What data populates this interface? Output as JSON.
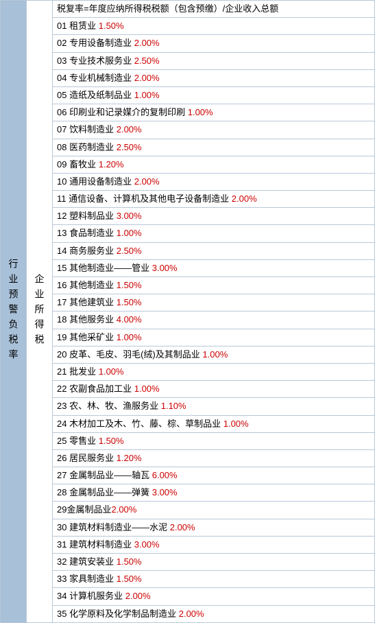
{
  "leftHeader": "行业预警负税率",
  "midHeader": "企业所得税",
  "formula": "税复率=年度应纳所得税税额（包含预缴）/企业收入总额",
  "rows": [
    {
      "num": "01",
      "name": "租赁业",
      "rate": "1.50%"
    },
    {
      "num": "02",
      "name": "专用设备制造业",
      "rate": "2.00%"
    },
    {
      "num": "03",
      "name": "专业技术服务业",
      "rate": "2.50%"
    },
    {
      "num": "04",
      "name": "专业机械制造业",
      "rate": "2.00%"
    },
    {
      "num": "05",
      "name": "造纸及纸制品业",
      "rate": "1.00%"
    },
    {
      "num": "06",
      "name": "印刷业和记录媒介的复制印刷",
      "rate": "1.00%"
    },
    {
      "num": "07",
      "name": "饮料制造业",
      "rate": "2.00%"
    },
    {
      "num": "08",
      "name": "医药制造业",
      "rate": "2.50%"
    },
    {
      "num": "09",
      "name": "畜牧业",
      "rate": "1.20%"
    },
    {
      "num": "10",
      "name": "通用设备制造业",
      "rate": "2.00%"
    },
    {
      "num": "11",
      "name": "通信设备、计算机及其他电子设备制造业",
      "rate": "2.00%"
    },
    {
      "num": "12",
      "name": "塑料制品业",
      "rate": "3.00%"
    },
    {
      "num": "13",
      "name": "食品制造业",
      "rate": "1.00%"
    },
    {
      "num": "14",
      "name": "商务服务业",
      "rate": "2.50%"
    },
    {
      "num": "15",
      "name": "其他制造业——管业",
      "rate": "3.00%"
    },
    {
      "num": "16",
      "name": "其他制造业",
      "rate": "1.50%"
    },
    {
      "num": "17",
      "name": "其他建筑业",
      "rate": "1.50%"
    },
    {
      "num": "18",
      "name": "其他服务业",
      "rate": "4.00%"
    },
    {
      "num": "19",
      "name": "其他采矿业",
      "rate": "1.00%"
    },
    {
      "num": "20",
      "name": "皮革、毛皮、羽毛(绒)及其制品业",
      "rate": "1.00%"
    },
    {
      "num": "21",
      "name": "批发业",
      "rate": "1.00%"
    },
    {
      "num": "22",
      "name": "农副食品加工业",
      "rate": "1.00%"
    },
    {
      "num": "23",
      "name": "农、林、牧、渔服务业",
      "rate": "1.10%"
    },
    {
      "num": "24",
      "name": "木材加工及木、竹、藤、棕、草制品业",
      "rate": "1.00%"
    },
    {
      "num": "25",
      "name": "零售业",
      "rate": "1.50%"
    },
    {
      "num": "26",
      "name": "居民服务业",
      "rate": "1.20%"
    },
    {
      "num": "27",
      "name": "金属制品业——轴瓦",
      "rate": "6.00%"
    },
    {
      "num": "28",
      "name": "金属制品业——弹簧",
      "rate": "3.00%"
    },
    {
      "num": "29",
      "name": "金属制品业",
      "rate": "2.00%",
      "nospace": true
    },
    {
      "num": "30",
      "name": "建筑材料制造业——水泥",
      "rate": "2.00%"
    },
    {
      "num": "31",
      "name": "建筑材料制造业",
      "rate": "3.00%"
    },
    {
      "num": "32",
      "name": "建筑安装业",
      "rate": "1.50%"
    },
    {
      "num": "33",
      "name": "家具制造业",
      "rate": "1.50%"
    },
    {
      "num": "34",
      "name": "计算机服务业",
      "rate": "2.00%"
    },
    {
      "num": "35",
      "name": "化学原料及化学制品制造业",
      "rate": "2.00%"
    }
  ],
  "colors": {
    "leftBg": "#a8c0d8",
    "border": "#b8c8d8",
    "rateColor": "#cc0000",
    "textColor": "#000000"
  }
}
